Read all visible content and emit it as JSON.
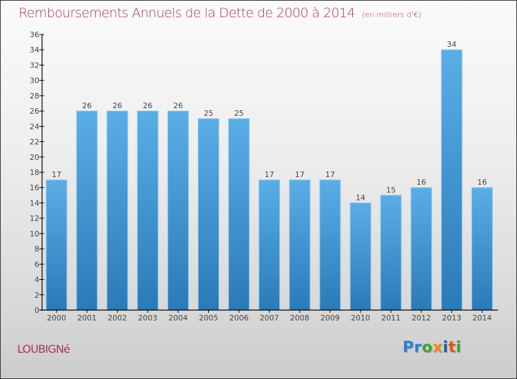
{
  "chart_data": {
    "type": "bar",
    "title": "Remboursements Annuels de la Dette de 2000 à 2014",
    "unit_note": "(en milliers d'€)",
    "xlabel": "",
    "ylabel": "",
    "categories": [
      "2000",
      "2001",
      "2002",
      "2003",
      "2004",
      "2005",
      "2006",
      "2007",
      "2008",
      "2009",
      "2010",
      "2011",
      "2012",
      "2013",
      "2014"
    ],
    "values": [
      17,
      26,
      26,
      26,
      26,
      25,
      25,
      17,
      17,
      17,
      14,
      15,
      16,
      34,
      16
    ],
    "data_labels": [
      "17",
      "26",
      "26",
      "26",
      "26",
      "25",
      "25",
      "17",
      "17",
      "17",
      "14",
      "15",
      "16",
      "34",
      "16"
    ],
    "ylim": [
      0,
      36
    ],
    "yticks": [
      0,
      2,
      4,
      6,
      8,
      10,
      12,
      14,
      16,
      18,
      20,
      22,
      24,
      26,
      28,
      30,
      32,
      34,
      36
    ],
    "grid": false,
    "legend": "none",
    "colors": {
      "bar_top": "#5aaee6",
      "bar_bottom": "#2a7ab8",
      "bar_edge": "#8cc8f0",
      "title": "#b0305c"
    }
  },
  "footer": {
    "city": "LOUBIGNé",
    "logo_letters": [
      {
        "ch": "P",
        "color": "#2a7fd4"
      },
      {
        "ch": "r",
        "color": "#2a7fd4"
      },
      {
        "ch": "o",
        "color": "#3aa63a"
      },
      {
        "ch": "x",
        "color": "#f08a1c"
      },
      {
        "ch": "i",
        "color": "#1a5fb4"
      },
      {
        "ch": "t",
        "color": "#e8541a"
      },
      {
        "ch": "i",
        "color": "#3aa63a"
      }
    ]
  }
}
